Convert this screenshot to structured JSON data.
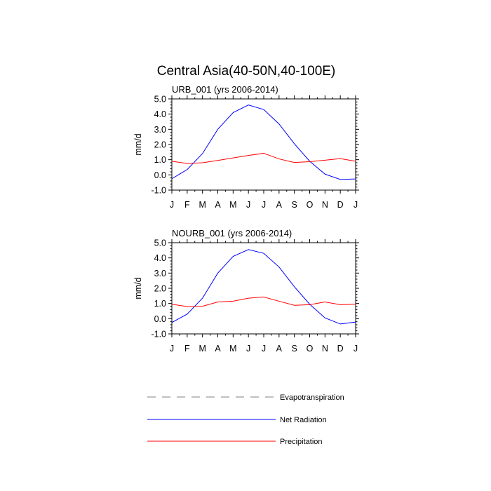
{
  "title": "Central Asia(40-50N,40-100E)",
  "colors": {
    "net_radiation": "#0000ff",
    "precipitation": "#ff0000",
    "evapotranspiration": "#9a9a9a"
  },
  "legend": [
    {
      "label": "Evapotranspiration",
      "style": "dashed",
      "color_key": "evapotranspiration"
    },
    {
      "label": "Net Radiation",
      "style": "solid",
      "color_key": "net_radiation"
    },
    {
      "label": "Precipitation",
      "style": "solid",
      "color_key": "precipitation"
    }
  ],
  "chart_data": [
    {
      "type": "line",
      "title": "URB_001 (yrs 2006-2014)",
      "ylabel": "mm/d",
      "xlabel": "",
      "categories": [
        "J",
        "F",
        "M",
        "A",
        "M",
        "J",
        "J",
        "A",
        "S",
        "O",
        "N",
        "D",
        "J"
      ],
      "ylim": [
        -1.0,
        5.0
      ],
      "yticks": [
        "-1.0",
        "0.0",
        "1.0",
        "2.0",
        "3.0",
        "4.0",
        "5.0"
      ],
      "series": [
        {
          "name": "Net Radiation",
          "color_key": "net_radiation",
          "values": [
            -0.25,
            0.35,
            1.4,
            3.0,
            4.1,
            4.6,
            4.3,
            3.35,
            2.05,
            0.9,
            0.05,
            -0.3,
            -0.27
          ]
        },
        {
          "name": "Precipitation",
          "color_key": "precipitation",
          "values": [
            0.9,
            0.75,
            0.8,
            0.95,
            1.12,
            1.28,
            1.42,
            1.05,
            0.82,
            0.87,
            0.97,
            1.07,
            0.9
          ]
        }
      ]
    },
    {
      "type": "line",
      "title": "NOURB_001 (yrs 2006-2014)",
      "ylabel": "mm/d",
      "xlabel": "",
      "categories": [
        "J",
        "F",
        "M",
        "A",
        "M",
        "J",
        "J",
        "A",
        "S",
        "O",
        "N",
        "D",
        "J"
      ],
      "ylim": [
        -1.0,
        5.0
      ],
      "yticks": [
        "-1.0",
        "0.0",
        "1.0",
        "2.0",
        "3.0",
        "4.0",
        "5.0"
      ],
      "series": [
        {
          "name": "Net Radiation",
          "color_key": "net_radiation",
          "values": [
            -0.25,
            0.3,
            1.35,
            3.0,
            4.1,
            4.55,
            4.3,
            3.4,
            2.1,
            0.95,
            0.05,
            -0.35,
            -0.22
          ]
        },
        {
          "name": "Precipitation",
          "color_key": "precipitation",
          "values": [
            0.95,
            0.8,
            0.82,
            1.1,
            1.15,
            1.35,
            1.43,
            1.15,
            0.88,
            0.92,
            1.1,
            0.92,
            0.95
          ]
        }
      ]
    }
  ]
}
